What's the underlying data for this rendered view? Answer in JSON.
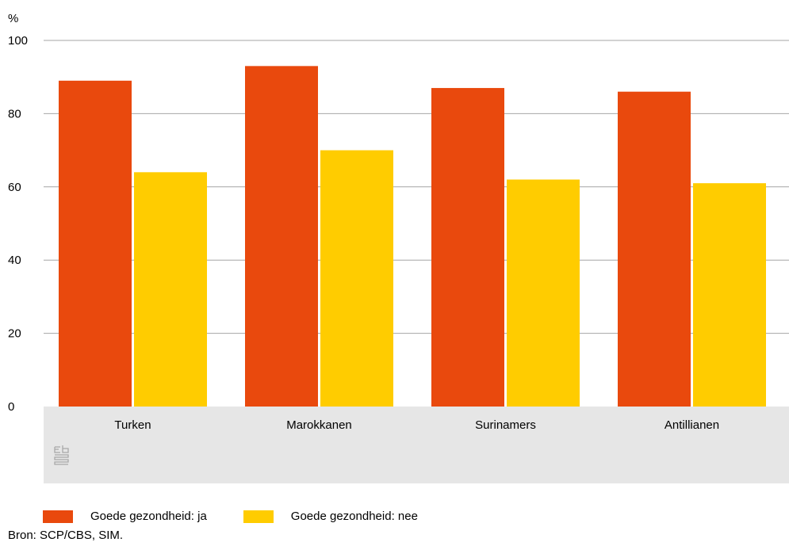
{
  "chart_data": {
    "type": "bar",
    "ylabel": "%",
    "ylim": [
      0,
      100
    ],
    "yticks": [
      0,
      20,
      40,
      60,
      80,
      100
    ],
    "grid": true,
    "categories": [
      "Turken",
      "Marokkanen",
      "Surinamers",
      "Antillianen"
    ],
    "series": [
      {
        "name": "Goede gezondheid: ja",
        "color": "#e9490d",
        "values": [
          89,
          93,
          87,
          86
        ]
      },
      {
        "name": "Goede gezondheid: nee",
        "color": "#ffcc00",
        "values": [
          64,
          70,
          62,
          61
        ]
      }
    ],
    "legend_position": "bottom-left"
  },
  "source": "Bron: SCP/CBS, SIM.",
  "logo": "cbs-logo-icon"
}
